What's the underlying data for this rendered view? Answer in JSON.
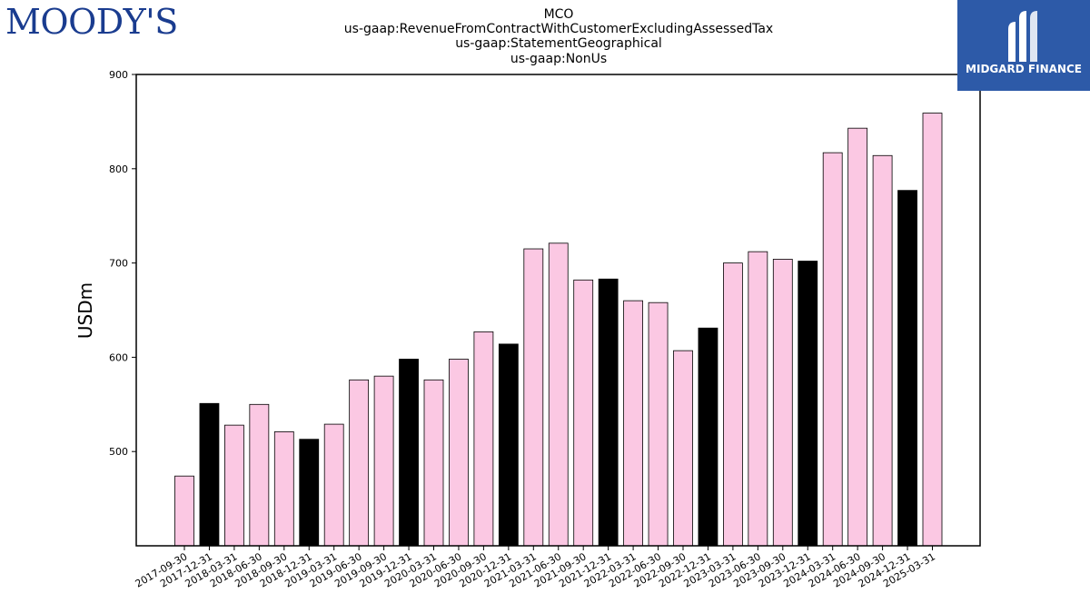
{
  "logos": {
    "left_text": "MOODY'S",
    "right_text": "MIDGARD FINANCE"
  },
  "colors": {
    "bar_default": "#fbc8e3",
    "bar_highlight": "#000000",
    "right_logo_bg": "#2d5aa8",
    "left_logo_text": "#1a3c8f"
  },
  "chart_data": {
    "type": "bar",
    "title_lines": [
      "MCO",
      "us-gaap:RevenueFromContractWithCustomerExcludingAssessedTax",
      "us-gaap:StatementGeographical",
      "us-gaap:NonUs"
    ],
    "xlabel": "",
    "ylabel": "USDm",
    "ylim": [
      400,
      900
    ],
    "yticks": [
      500,
      600,
      700,
      800,
      900
    ],
    "grid": false,
    "categories": [
      "2017-09-30",
      "2017-12-31",
      "2018-03-31",
      "2018-06-30",
      "2018-09-30",
      "2018-12-31",
      "2019-03-31",
      "2019-06-30",
      "2019-09-30",
      "2019-12-31",
      "2020-03-31",
      "2020-06-30",
      "2020-09-30",
      "2020-12-31",
      "2021-03-31",
      "2021-06-30",
      "2021-09-30",
      "2021-12-31",
      "2022-03-31",
      "2022-06-30",
      "2022-09-30",
      "2022-12-31",
      "2023-03-31",
      "2023-06-30",
      "2023-09-30",
      "2023-12-31",
      "2024-03-31",
      "2024-06-30",
      "2024-09-30",
      "2024-12-31",
      "2025-03-31"
    ],
    "values": [
      474,
      551,
      528,
      550,
      521,
      513,
      529,
      576,
      580,
      598,
      576,
      598,
      627,
      614,
      715,
      721,
      682,
      683,
      660,
      658,
      607,
      631,
      700,
      712,
      704,
      702,
      817,
      843,
      814,
      777,
      859
    ],
    "highlight_categories": [
      "2017-12-31",
      "2018-12-31",
      "2019-12-31",
      "2020-12-31",
      "2021-12-31",
      "2022-12-31",
      "2023-12-31",
      "2024-12-31"
    ]
  }
}
